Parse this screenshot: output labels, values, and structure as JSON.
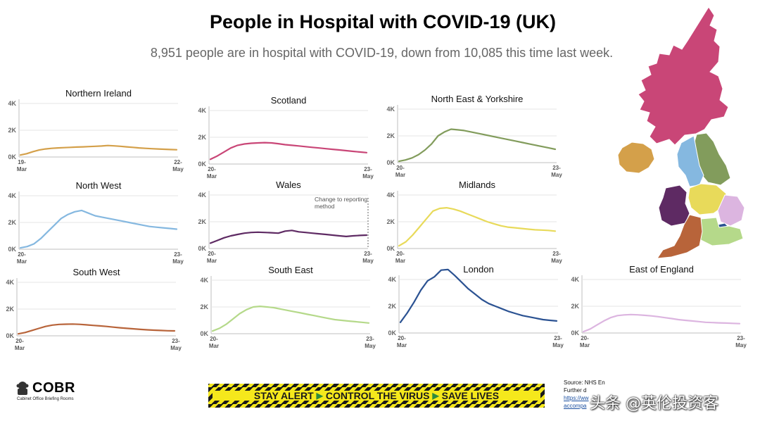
{
  "header": {
    "title": "People in Hospital with COVID-19 (UK)",
    "subtitle": "8,951 people are in hospital with COVID-19, down from 10,085 this time last week."
  },
  "footer": {
    "org_name": "COBR",
    "org_subtitle": "Cabinet Office Briefing Rooms",
    "banner": [
      "STAY ALERT",
      "CONTROL THE VIRUS",
      "SAVE LIVES"
    ],
    "source_line1": "Source: NHS En",
    "source_line2": "Further d",
    "source_link1": "https://ww",
    "source_link2": "accompa",
    "watermark": "头条 @英伦投资客"
  },
  "colors": {
    "Northern Ireland": "#d4a04a",
    "Scotland": "#c94677",
    "North East & Yorkshire": "#829c5c",
    "North West": "#85b8e0",
    "Wales": "#5e2a63",
    "Midlands": "#e8da5a",
    "South West": "#b8643a",
    "South East": "#b5d98a",
    "London": "#2b5292",
    "East of England": "#dcb5e0"
  },
  "chart_data": [
    {
      "type": "line",
      "name": "Northern Ireland",
      "x_start": "19-Mar",
      "x_end": "22-May",
      "yticks": [
        "0K",
        "2K",
        "4K"
      ],
      "ylim": [
        0,
        4000
      ],
      "values": [
        150,
        250,
        400,
        520,
        600,
        650,
        680,
        700,
        720,
        740,
        760,
        780,
        800,
        820,
        860,
        830,
        800,
        760,
        720,
        680,
        650,
        620,
        600,
        580,
        560,
        540
      ]
    },
    {
      "type": "line",
      "name": "Scotland",
      "x_start": "20-Mar",
      "x_end": "23-May",
      "yticks": [
        "0K",
        "2K",
        "4K"
      ],
      "ylim": [
        0,
        4000
      ],
      "values": [
        350,
        600,
        900,
        1200,
        1400,
        1500,
        1550,
        1580,
        1600,
        1580,
        1520,
        1450,
        1400,
        1350,
        1300,
        1250,
        1200,
        1150,
        1100,
        1050,
        1000,
        950,
        900,
        850
      ]
    },
    {
      "type": "line",
      "name": "North East & Yorkshire",
      "x_start": "20-Mar",
      "x_end": "23-May",
      "yticks": [
        "0K",
        "2K",
        "4K"
      ],
      "ylim": [
        0,
        4000
      ],
      "values": [
        100,
        200,
        350,
        600,
        950,
        1400,
        2000,
        2300,
        2500,
        2450,
        2400,
        2300,
        2200,
        2100,
        2000,
        1900,
        1800,
        1700,
        1600,
        1500,
        1400,
        1300,
        1200,
        1100,
        1000
      ]
    },
    {
      "type": "line",
      "name": "North West",
      "x_start": "20-Mar",
      "x_end": "23-May",
      "yticks": [
        "0K",
        "2K",
        "4K"
      ],
      "ylim": [
        0,
        4000
      ],
      "values": [
        100,
        200,
        400,
        800,
        1300,
        1800,
        2300,
        2600,
        2800,
        2900,
        2700,
        2500,
        2400,
        2300,
        2200,
        2100,
        2000,
        1900,
        1800,
        1700,
        1650,
        1600,
        1550,
        1500
      ]
    },
    {
      "type": "line",
      "name": "Wales",
      "x_start": "20-Mar",
      "x_end": "23-May",
      "yticks": [
        "0K",
        "2K",
        "4K"
      ],
      "ylim": [
        0,
        4000
      ],
      "values": [
        400,
        600,
        800,
        950,
        1050,
        1150,
        1200,
        1220,
        1200,
        1180,
        1150,
        1300,
        1350,
        1250,
        1200,
        1150,
        1100,
        1050,
        1000,
        950,
        900,
        950,
        980,
        1000
      ],
      "annotation": "Change to reporting method"
    },
    {
      "type": "line",
      "name": "Midlands",
      "x_start": "20-Mar",
      "x_end": "23-May",
      "yticks": [
        "0K",
        "2K",
        "4K"
      ],
      "ylim": [
        0,
        4000
      ],
      "values": [
        200,
        500,
        1000,
        1600,
        2200,
        2800,
        3000,
        3050,
        2950,
        2800,
        2600,
        2400,
        2200,
        2000,
        1850,
        1700,
        1600,
        1550,
        1500,
        1450,
        1400,
        1380,
        1350,
        1300
      ]
    },
    {
      "type": "line",
      "name": "South West",
      "x_start": "20-Mar",
      "x_end": "23-May",
      "yticks": [
        "0K",
        "2K",
        "4K"
      ],
      "ylim": [
        0,
        4000
      ],
      "values": [
        150,
        250,
        400,
        550,
        700,
        800,
        850,
        870,
        880,
        860,
        820,
        780,
        740,
        700,
        650,
        600,
        560,
        520,
        480,
        450,
        420,
        400,
        380,
        370
      ]
    },
    {
      "type": "line",
      "name": "South East",
      "x_start": "20-Mar",
      "x_end": "23-May",
      "yticks": [
        "0K",
        "2K",
        "4K"
      ],
      "ylim": [
        0,
        4000
      ],
      "values": [
        200,
        400,
        700,
        1100,
        1500,
        1800,
        2000,
        2050,
        2000,
        1950,
        1850,
        1750,
        1650,
        1550,
        1450,
        1350,
        1250,
        1150,
        1050,
        1000,
        950,
        900,
        850,
        800
      ]
    },
    {
      "type": "line",
      "name": "London",
      "x_start": "20-Mar",
      "x_end": "23-May",
      "yticks": [
        "0K",
        "2K",
        "4K"
      ],
      "ylim": [
        0,
        4000
      ],
      "values": [
        800,
        1500,
        2300,
        3200,
        3900,
        4200,
        4700,
        4750,
        4300,
        3800,
        3300,
        2900,
        2500,
        2200,
        2000,
        1800,
        1600,
        1450,
        1300,
        1200,
        1100,
        1000,
        950,
        900
      ]
    },
    {
      "type": "line",
      "name": "East of England",
      "x_start": "20-Mar",
      "x_end": "23-May",
      "yticks": [
        "0K",
        "2K",
        "4K"
      ],
      "ylim": [
        0,
        4000
      ],
      "values": [
        100,
        300,
        600,
        900,
        1150,
        1300,
        1350,
        1380,
        1360,
        1320,
        1280,
        1220,
        1150,
        1080,
        1000,
        950,
        900,
        850,
        800,
        780,
        760,
        740,
        720,
        700
      ]
    }
  ]
}
